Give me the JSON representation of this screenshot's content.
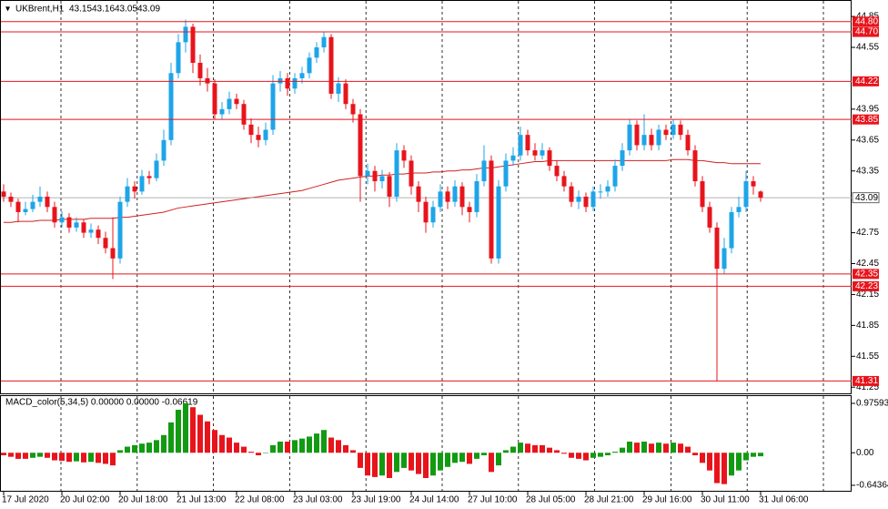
{
  "chart_data": [
    {
      "type": "candlestick",
      "symbol": "UKBrent,H1",
      "x_labels": [
        "17 Jul 2020",
        "20 Jul 02:00",
        "20 Jul 18:00",
        "21 Jul 13:00",
        "22 Jul 08:00",
        "23 Jul 03:00",
        "23 Jul 19:00",
        "24 Jul 14:00",
        "27 Jul 10:00",
        "28 Jul 05:00",
        "28 Jul 21:00",
        "29 Jul 16:00",
        "30 Jul 11:00",
        "31 Jul 06:00"
      ],
      "open": [
        43.15,
        43.1,
        43.05,
        42.95,
        42.98,
        43.05,
        43.1,
        43.0,
        42.85,
        42.9,
        42.8,
        42.85,
        42.75,
        42.78,
        42.7,
        42.6,
        42.5,
        43.05,
        43.2,
        43.15,
        43.3,
        43.28,
        43.45,
        43.65,
        44.3,
        44.6,
        44.75,
        44.4,
        44.25,
        44.2,
        43.9,
        43.95,
        44.05,
        44.0,
        43.8,
        43.7,
        43.65,
        43.75,
        44.2,
        44.25,
        44.15,
        44.25,
        44.3,
        44.45,
        44.55,
        44.65,
        44.1,
        44.2,
        44.0,
        43.9,
        43.3,
        43.35,
        43.25,
        43.3,
        43.1,
        43.55,
        43.45,
        43.2,
        43.05,
        42.85,
        43.0,
        43.15,
        43.05,
        43.2,
        43.0,
        42.95,
        43.25,
        43.45,
        42.5,
        43.2,
        43.45,
        43.5,
        43.7,
        43.55,
        43.5,
        43.55,
        43.4,
        43.3,
        43.2,
        43.05,
        43.1,
        43.0,
        43.15,
        43.15,
        43.2,
        43.4,
        43.55,
        43.8,
        43.6,
        43.7,
        43.6,
        43.75,
        43.7,
        43.8,
        43.7,
        43.55,
        43.25,
        43.0,
        42.8,
        42.4,
        42.6,
        42.95,
        43.0,
        43.25,
        43.15
      ],
      "high": [
        43.22,
        43.14,
        43.08,
        43.05,
        43.12,
        43.2,
        43.15,
        43.05,
        42.96,
        42.94,
        42.9,
        42.88,
        42.84,
        42.82,
        42.76,
        42.9,
        43.1,
        43.28,
        43.25,
        43.36,
        43.35,
        43.52,
        43.75,
        44.4,
        44.68,
        44.82,
        44.78,
        44.48,
        44.35,
        44.24,
        44.02,
        44.12,
        44.1,
        44.04,
        43.86,
        43.78,
        43.82,
        44.28,
        44.32,
        44.3,
        44.3,
        44.36,
        44.5,
        44.6,
        44.7,
        44.68,
        44.26,
        44.24,
        44.05,
        43.95,
        43.42,
        43.4,
        43.36,
        43.34,
        43.62,
        43.6,
        43.5,
        43.25,
        43.1,
        43.06,
        43.22,
        43.2,
        43.26,
        43.24,
        43.05,
        43.32,
        43.6,
        43.5,
        43.26,
        43.52,
        43.58,
        43.78,
        43.75,
        43.62,
        43.62,
        43.58,
        43.45,
        43.35,
        43.24,
        43.16,
        43.14,
        43.2,
        43.22,
        43.26,
        43.46,
        43.62,
        43.85,
        43.84,
        43.9,
        43.76,
        43.8,
        43.8,
        43.85,
        43.84,
        43.75,
        43.6,
        43.3,
        43.05,
        42.85,
        42.7,
        43.0,
        43.1,
        43.35,
        43.3,
        43.16
      ],
      "low": [
        43.05,
        43.0,
        42.85,
        42.92,
        42.95,
        43.0,
        42.95,
        42.8,
        42.8,
        42.75,
        42.76,
        42.7,
        42.7,
        42.64,
        42.55,
        42.3,
        42.45,
        43.0,
        43.08,
        43.12,
        43.22,
        43.25,
        43.4,
        43.6,
        44.25,
        44.5,
        44.3,
        44.18,
        44.12,
        43.85,
        43.85,
        43.9,
        43.95,
        43.75,
        43.62,
        43.58,
        43.6,
        43.7,
        44.12,
        44.08,
        44.1,
        44.2,
        44.25,
        44.4,
        44.5,
        44.05,
        44.02,
        43.95,
        43.82,
        43.05,
        43.22,
        43.15,
        43.18,
        43.0,
        43.05,
        43.38,
        43.12,
        42.95,
        42.75,
        42.8,
        42.95,
        42.98,
        43.0,
        42.92,
        42.85,
        42.9,
        43.2,
        42.45,
        42.45,
        43.15,
        43.4,
        43.45,
        43.5,
        43.45,
        43.46,
        43.35,
        43.25,
        43.15,
        43.0,
        42.98,
        42.95,
        42.96,
        43.08,
        43.1,
        43.15,
        43.35,
        43.5,
        43.55,
        43.55,
        43.55,
        43.55,
        43.65,
        43.66,
        43.65,
        43.5,
        43.2,
        42.95,
        42.75,
        41.31,
        42.35,
        42.55,
        42.9,
        42.95,
        43.12,
        43.05
      ],
      "close": [
        43.1,
        43.05,
        42.95,
        42.98,
        43.05,
        43.1,
        43.0,
        42.85,
        42.9,
        42.8,
        42.85,
        42.75,
        42.78,
        42.7,
        42.6,
        42.5,
        43.05,
        43.2,
        43.15,
        43.3,
        43.28,
        43.45,
        43.65,
        44.3,
        44.6,
        44.75,
        44.4,
        44.25,
        44.2,
        43.9,
        43.95,
        44.05,
        44.0,
        43.8,
        43.7,
        43.65,
        43.75,
        44.2,
        44.25,
        44.15,
        44.25,
        44.3,
        44.45,
        44.55,
        44.65,
        44.1,
        44.2,
        44.0,
        43.9,
        43.3,
        43.35,
        43.25,
        43.3,
        43.1,
        43.55,
        43.45,
        43.2,
        43.05,
        42.85,
        43.0,
        43.15,
        43.05,
        43.2,
        43.0,
        42.95,
        43.25,
        43.45,
        42.5,
        43.2,
        43.45,
        43.5,
        43.7,
        43.55,
        43.5,
        43.55,
        43.4,
        43.3,
        43.2,
        43.05,
        43.1,
        43.0,
        43.15,
        43.15,
        43.2,
        43.4,
        43.55,
        43.8,
        43.6,
        43.7,
        43.6,
        43.75,
        43.7,
        43.8,
        43.7,
        43.55,
        43.25,
        43.0,
        42.8,
        42.4,
        42.6,
        42.95,
        43.0,
        43.25,
        43.2,
        43.09
      ],
      "ma": [
        42.85,
        42.85,
        42.86,
        42.86,
        42.86,
        42.87,
        42.87,
        42.87,
        42.88,
        42.88,
        42.88,
        42.88,
        42.89,
        42.89,
        42.89,
        42.89,
        42.9,
        42.9,
        42.91,
        42.92,
        42.93,
        42.94,
        42.95,
        42.97,
        42.99,
        43.0,
        43.01,
        43.02,
        43.03,
        43.04,
        43.05,
        43.06,
        43.07,
        43.08,
        43.09,
        43.1,
        43.11,
        43.12,
        43.13,
        43.14,
        43.15,
        43.16,
        43.18,
        43.2,
        43.22,
        43.24,
        43.26,
        43.27,
        43.28,
        43.29,
        43.3,
        43.3,
        43.31,
        43.31,
        43.32,
        43.32,
        43.33,
        43.33,
        43.33,
        43.34,
        43.34,
        43.35,
        43.35,
        43.36,
        43.36,
        43.37,
        43.38,
        43.38,
        43.39,
        43.4,
        43.41,
        43.42,
        43.43,
        43.44,
        43.44,
        43.45,
        43.45,
        43.45,
        43.45,
        43.45,
        43.45,
        43.45,
        43.45,
        43.45,
        43.45,
        43.45,
        43.45,
        43.45,
        43.45,
        43.45,
        43.45,
        43.45,
        43.46,
        43.46,
        43.46,
        43.45,
        43.45,
        43.44,
        43.43,
        43.43,
        43.42,
        43.42,
        43.42,
        43.42,
        43.42
      ],
      "up_color": "#1ea5e8",
      "down_color": "#e8141c",
      "ma_color": "#d02020",
      "level_color": "#e8141c",
      "levels": [
        {
          "value": 44.8,
          "label": "44.80"
        },
        {
          "value": 44.7,
          "label": "44.70"
        },
        44.22,
        43.85,
        42.35,
        42.23,
        41.31
      ],
      "ylim": [
        41.19,
        45.01
      ],
      "yticks": [
        44.85,
        44.55,
        43.95,
        43.65,
        43.35,
        42.75,
        42.45,
        42.15,
        41.85,
        41.55,
        41.25
      ]
    },
    {
      "type": "macd",
      "label": "MACD_color(5,34,5) 0.00000 0.00000 -0.06619",
      "values": [
        -0.05,
        -0.08,
        -0.12,
        -0.12,
        -0.1,
        -0.08,
        -0.1,
        -0.15,
        -0.16,
        -0.18,
        -0.17,
        -0.19,
        -0.18,
        -0.2,
        -0.22,
        -0.25,
        0.05,
        0.12,
        0.15,
        0.18,
        0.2,
        0.25,
        0.35,
        0.6,
        0.85,
        0.98,
        0.9,
        0.75,
        0.62,
        0.45,
        0.35,
        0.3,
        0.2,
        0.12,
        0.02,
        -0.05,
        0.0,
        0.15,
        0.22,
        0.22,
        0.25,
        0.28,
        0.32,
        0.38,
        0.45,
        0.3,
        0.25,
        0.15,
        0.05,
        -0.3,
        -0.45,
        -0.48,
        -0.45,
        -0.5,
        -0.38,
        -0.3,
        -0.35,
        -0.42,
        -0.5,
        -0.45,
        -0.35,
        -0.28,
        -0.2,
        -0.18,
        -0.22,
        -0.12,
        -0.05,
        -0.38,
        -0.25,
        0.05,
        0.12,
        0.2,
        0.18,
        0.15,
        0.15,
        0.1,
        0.05,
        -0.02,
        -0.1,
        -0.12,
        -0.15,
        -0.1,
        -0.08,
        -0.05,
        0.02,
        0.1,
        0.22,
        0.2,
        0.22,
        0.18,
        0.2,
        0.18,
        0.2,
        0.18,
        0.12,
        -0.05,
        -0.2,
        -0.35,
        -0.6,
        -0.62,
        -0.45,
        -0.35,
        -0.15,
        -0.08,
        -0.07
      ],
      "up_color": "#139a13",
      "down_color": "#e8141c",
      "ylim": [
        -0.77,
        1.12
      ],
      "yticks": [
        0.97593,
        {
          "value": 0,
          "label": "0.00"
        },
        -0.64364
      ]
    }
  ]
}
